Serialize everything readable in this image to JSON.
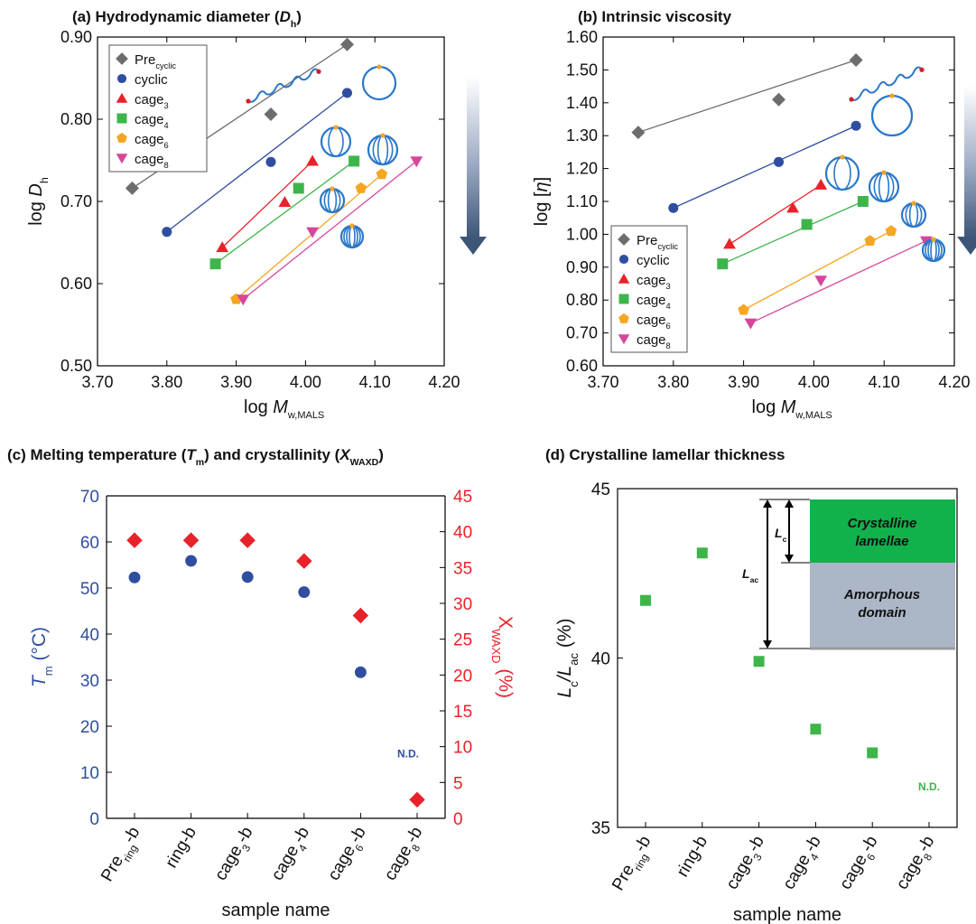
{
  "figure": {
    "panels": [
      {
        "id": "a",
        "title_pre": "(a) Hydrodynamic diameter (",
        "title_sym": "D",
        "title_sub": "h",
        "title_post": ")"
      },
      {
        "id": "b",
        "title_pre": "(b) Intrinsic viscosity",
        "title_sym": "",
        "title_sub": "",
        "title_post": ""
      },
      {
        "id": "c",
        "title_pre": "(c) Melting temperature (",
        "title_sym": "T",
        "title_sub": "m",
        "title_post": ") and crystallinity (",
        "title_sym2": "X",
        "title_sub2": "WAXD",
        "title_post2": ")"
      },
      {
        "id": "d",
        "title_pre": "(d) Crystalline lamellar thickness",
        "title_sym": "",
        "title_sub": "",
        "title_post": ""
      }
    ]
  },
  "chart_data": [
    {
      "type": "scatter",
      "panel": "a",
      "xlabel": "log M",
      "xlabel_sub": "w,MALS",
      "ylabel": "log D",
      "ylabel_sub": "h",
      "xlim": [
        3.7,
        4.2
      ],
      "ylim": [
        0.5,
        0.9
      ],
      "xticks": [
        "3.70",
        "3.80",
        "3.90",
        "4.00",
        "4.10",
        "4.20"
      ],
      "yticks": [
        "0.50",
        "0.60",
        "0.70",
        "0.80",
        "0.90"
      ],
      "legend": "top-left",
      "series": [
        {
          "name": "Pre",
          "sub": "cyclic",
          "color": "#6d6d6d",
          "marker": "diamond",
          "points": [
            [
              3.75,
              0.716
            ],
            [
              3.95,
              0.806
            ],
            [
              4.06,
              0.891
            ]
          ]
        },
        {
          "name": "cyclic",
          "sub": "",
          "color": "#2f4ea0",
          "marker": "circle",
          "points": [
            [
              3.8,
              0.663
            ],
            [
              3.95,
              0.748
            ],
            [
              4.06,
              0.832
            ]
          ]
        },
        {
          "name": "cage",
          "sub": "3",
          "color": "#e8222a",
          "marker": "triangle",
          "points": [
            [
              3.88,
              0.644
            ],
            [
              3.97,
              0.699
            ],
            [
              4.01,
              0.749
            ]
          ]
        },
        {
          "name": "cage",
          "sub": "4",
          "color": "#3db54a",
          "marker": "square",
          "points": [
            [
              3.87,
              0.624
            ],
            [
              3.99,
              0.716
            ],
            [
              4.07,
              0.749
            ]
          ]
        },
        {
          "name": "cage",
          "sub": "6",
          "color": "#f5a623",
          "marker": "pentagon",
          "points": [
            [
              3.9,
              0.581
            ],
            [
              4.08,
              0.716
            ],
            [
              4.11,
              0.733
            ]
          ]
        },
        {
          "name": "cage",
          "sub": "8",
          "color": "#d6479b",
          "marker": "triangle-down",
          "points": [
            [
              3.91,
              0.581
            ],
            [
              4.01,
              0.663
            ],
            [
              4.16,
              0.749
            ]
          ]
        }
      ]
    },
    {
      "type": "scatter",
      "panel": "b",
      "xlabel": "log M",
      "xlabel_sub": "w,MALS",
      "ylabel": "log [η]",
      "xlim": [
        3.7,
        4.2
      ],
      "ylim": [
        0.6,
        1.6
      ],
      "xticks": [
        "3.70",
        "3.80",
        "3.90",
        "4.00",
        "4.10",
        "4.20"
      ],
      "yticks": [
        "0.60",
        "0.70",
        "0.80",
        "0.90",
        "1.00",
        "1.10",
        "1.20",
        "1.30",
        "1.40",
        "1.50",
        "1.60"
      ],
      "legend": "bottom-left",
      "series": [
        {
          "name": "Pre",
          "sub": "cyclic",
          "color": "#6d6d6d",
          "marker": "diamond",
          "points": [
            [
              3.75,
              1.31
            ],
            [
              3.95,
              1.41
            ],
            [
              4.06,
              1.53
            ]
          ]
        },
        {
          "name": "cyclic",
          "sub": "",
          "color": "#2f4ea0",
          "marker": "circle",
          "points": [
            [
              3.8,
              1.08
            ],
            [
              3.95,
              1.22
            ],
            [
              4.06,
              1.33
            ]
          ]
        },
        {
          "name": "cage",
          "sub": "3",
          "color": "#e8222a",
          "marker": "triangle",
          "points": [
            [
              3.88,
              0.97
            ],
            [
              3.97,
              1.08
            ],
            [
              4.01,
              1.15
            ]
          ]
        },
        {
          "name": "cage",
          "sub": "4",
          "color": "#3db54a",
          "marker": "square",
          "points": [
            [
              3.87,
              0.91
            ],
            [
              3.99,
              1.03
            ],
            [
              4.07,
              1.1
            ]
          ]
        },
        {
          "name": "cage",
          "sub": "6",
          "color": "#f5a623",
          "marker": "pentagon",
          "points": [
            [
              3.9,
              0.77
            ],
            [
              4.08,
              0.98
            ],
            [
              4.11,
              1.01
            ]
          ]
        },
        {
          "name": "cage",
          "sub": "8",
          "color": "#d6479b",
          "marker": "triangle-down",
          "points": [
            [
              3.91,
              0.73
            ],
            [
              4.01,
              0.86
            ],
            [
              4.16,
              0.98
            ]
          ]
        }
      ]
    },
    {
      "type": "scatter",
      "panel": "c",
      "categories": [
        {
          "base": "Pre",
          "sub": "ring",
          "post": "-b"
        },
        {
          "base": "ring-b",
          "sub": "",
          "post": ""
        },
        {
          "base": "cage",
          "sub": "3",
          "post": "-b"
        },
        {
          "base": "cage",
          "sub": "4",
          "post": "-b"
        },
        {
          "base": "cage",
          "sub": "6",
          "post": "-b"
        },
        {
          "base": "cage",
          "sub": "8",
          "post": "-b"
        }
      ],
      "xlabel": "sample name",
      "ylabel_left": "T",
      "ylabel_left_sub": "m",
      "ylabel_left_post": " (°C)",
      "ylabel_right": "X",
      "ylabel_right_sub": "WAXD",
      "ylabel_right_post": " (%)",
      "ylim_left": [
        0,
        70
      ],
      "ylim_right": [
        0,
        45
      ],
      "yticks_left": [
        "0",
        "10",
        "20",
        "30",
        "40",
        "50",
        "60",
        "70"
      ],
      "yticks_right": [
        "0",
        "5",
        "10",
        "15",
        "20",
        "25",
        "30",
        "35",
        "40",
        "45"
      ],
      "series": [
        {
          "axis": "left",
          "color": "#2f4ea0",
          "marker": "circle",
          "values": [
            52.3,
            55.9,
            52.4,
            49.1,
            31.7,
            null
          ]
        },
        {
          "axis": "right",
          "color": "#e8222a",
          "marker": "diamond",
          "values": [
            38.8,
            38.8,
            38.8,
            35.9,
            28.3,
            2.6
          ]
        }
      ],
      "annotation": "N.D.",
      "annotation_color": "#2f4ea0",
      "axis_color_left": "#2f4ea0",
      "axis_color_right": "#e8222a"
    },
    {
      "type": "scatter",
      "panel": "d",
      "categories": [
        {
          "base": "Pre",
          "sub": "ring",
          "post": "-b"
        },
        {
          "base": "ring-b",
          "sub": "",
          "post": ""
        },
        {
          "base": "cage",
          "sub": "3",
          "post": "-b"
        },
        {
          "base": "cage",
          "sub": "4",
          "post": "-b"
        },
        {
          "base": "cage",
          "sub": "6",
          "post": "-b"
        },
        {
          "base": "cage",
          "sub": "8",
          "post": "-b"
        }
      ],
      "xlabel": "sample name",
      "ylabel": "L",
      "ylabel_sub": "c",
      "ylabel_mid": "/L",
      "ylabel_sub2": "ac",
      "ylabel_post": " (%)",
      "ylim": [
        35,
        45
      ],
      "yticks": [
        "35",
        "40",
        "45"
      ],
      "series": [
        {
          "color": "#3db54a",
          "marker": "square",
          "values": [
            41.7,
            43.1,
            39.9,
            37.9,
            37.2,
            null
          ]
        }
      ],
      "annotation": "N.D.",
      "annotation_color": "#3db54a",
      "inset": {
        "crystalline": "Crystalline\nlamellae",
        "amorphous": "Amorphous\ndomain",
        "lc_label": "L",
        "lc_sub": "c",
        "lac_label": "L",
        "lac_sub": "ac",
        "crystalline_color": "#11b14b",
        "amorphous_color": "#abb6c6"
      }
    }
  ]
}
